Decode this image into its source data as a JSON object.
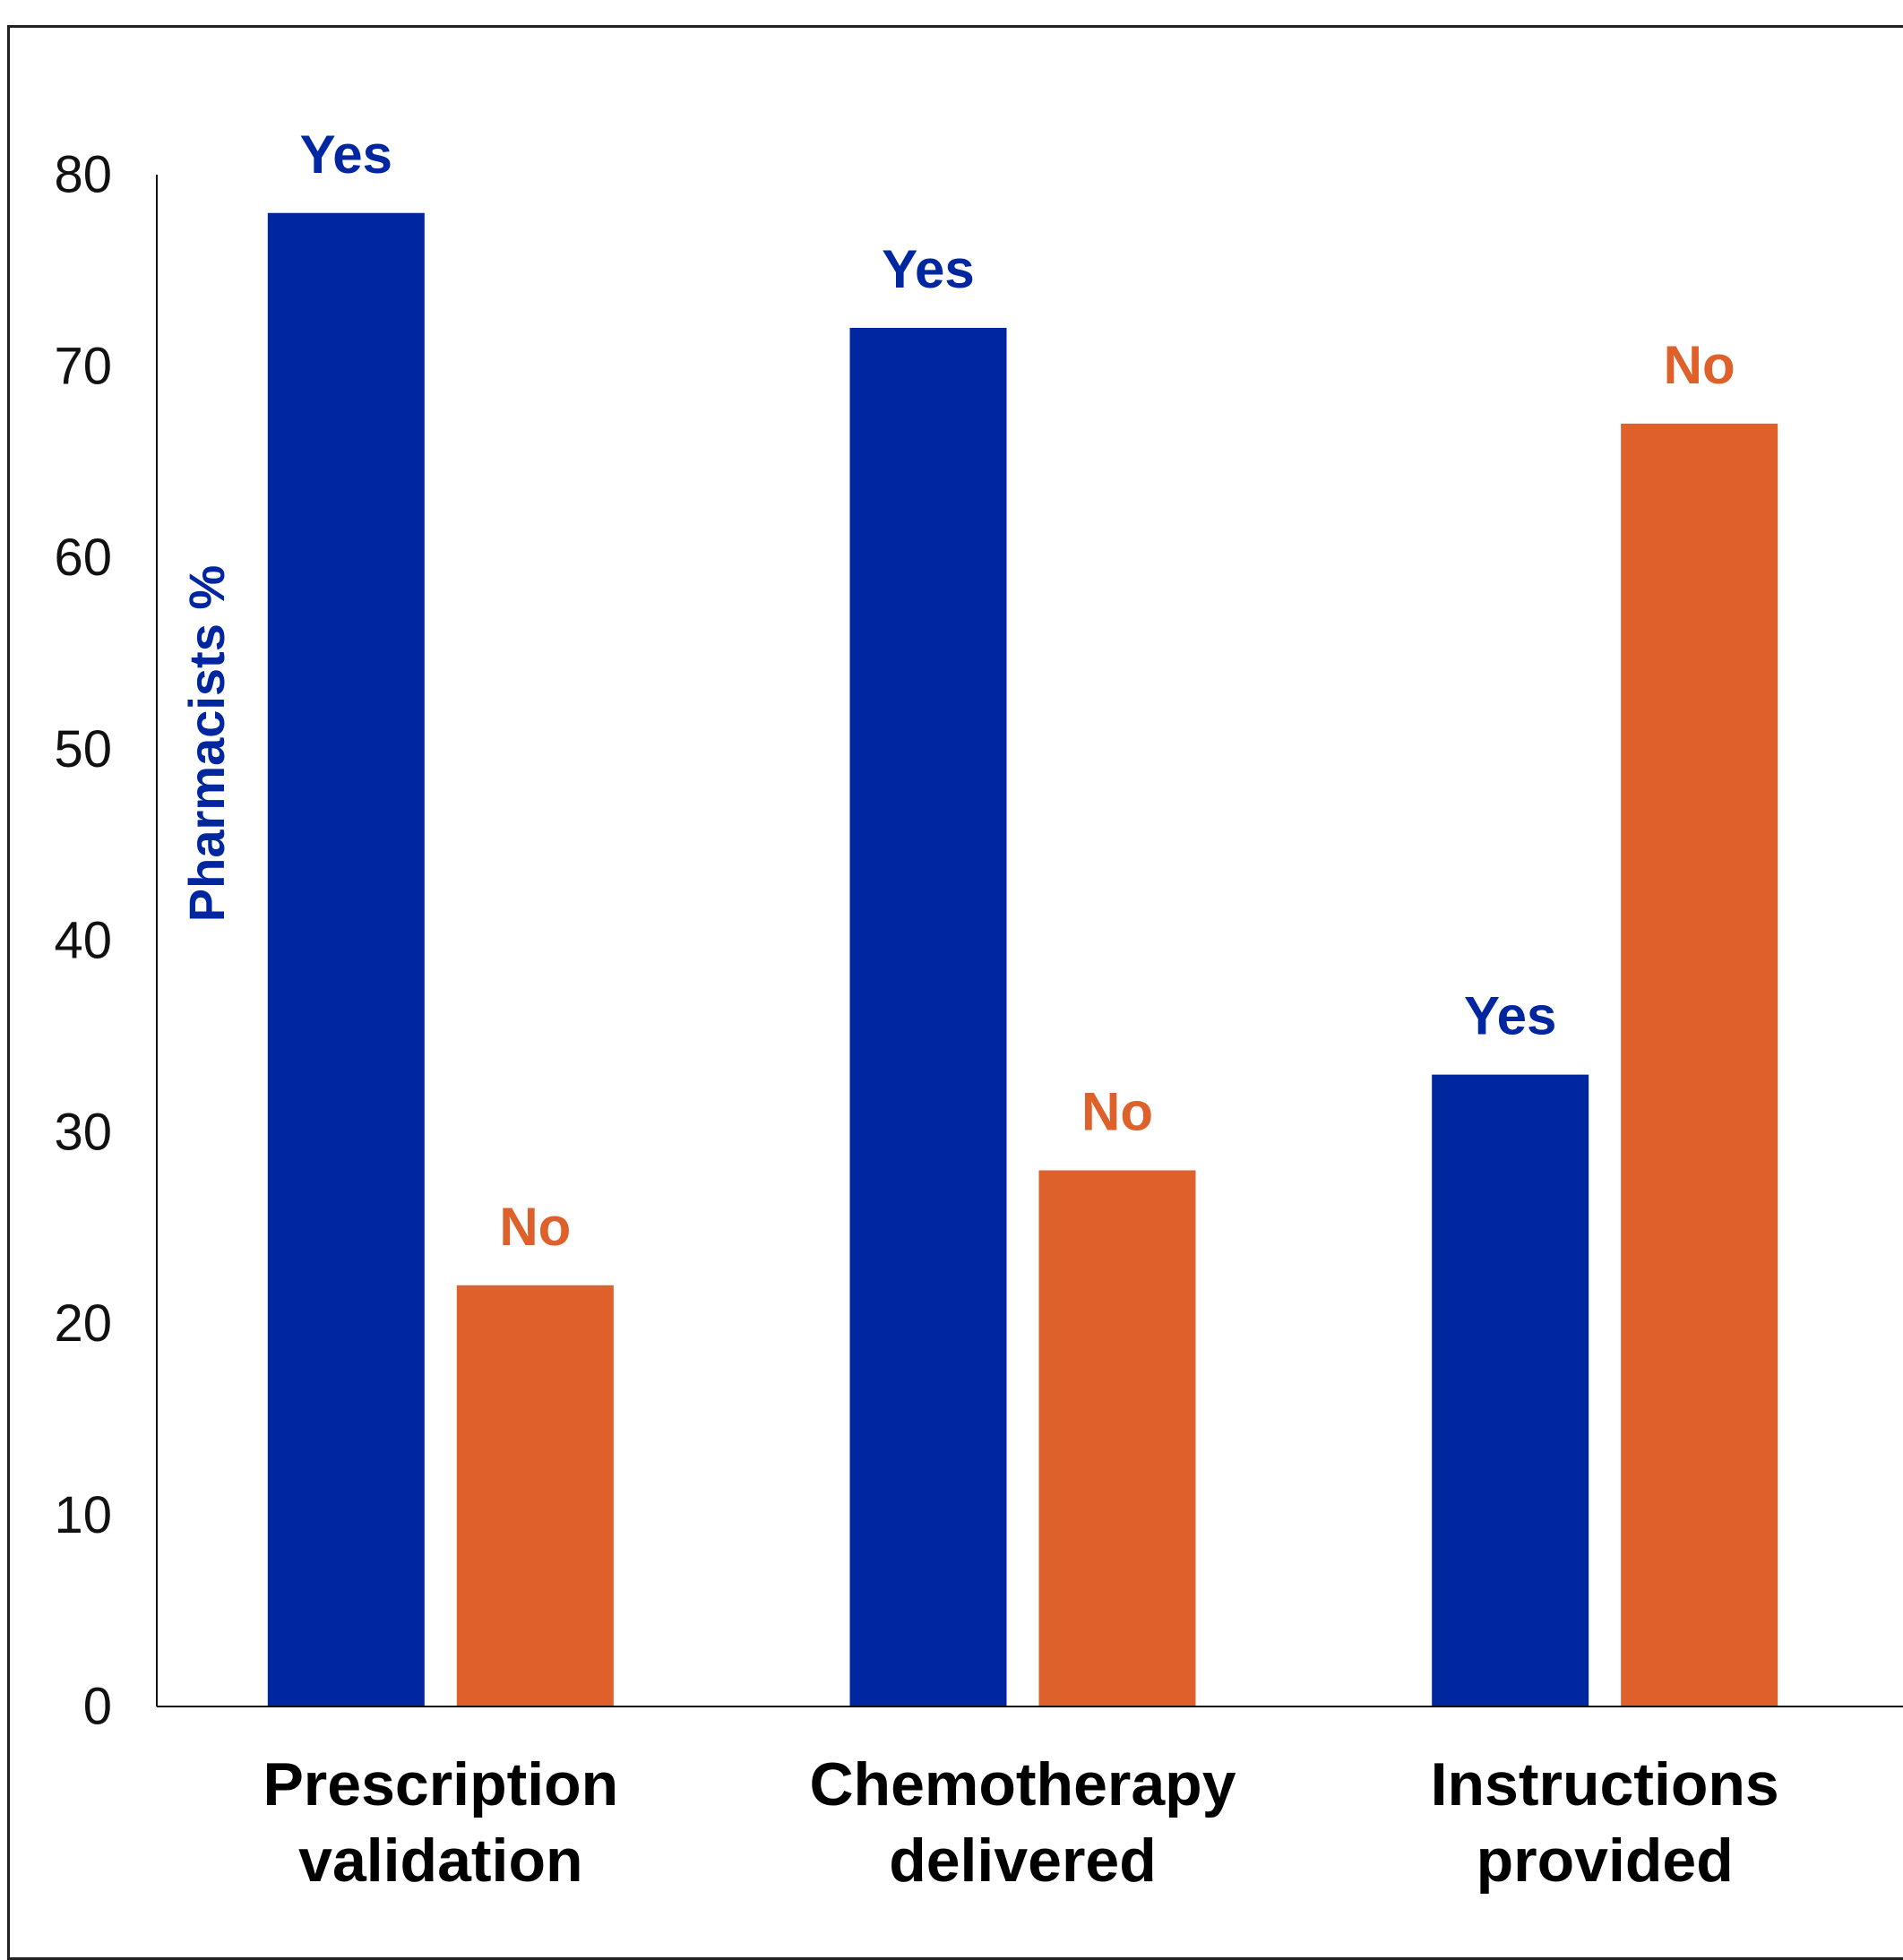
{
  "chart_data": {
    "type": "bar",
    "ylabel": "Pharmacists %",
    "ylim": [
      0,
      80
    ],
    "yticks": [
      0,
      10,
      20,
      30,
      40,
      50,
      60,
      70,
      80
    ],
    "categories": [
      [
        "Prescription",
        "validation"
      ],
      [
        "Chemotherapy",
        "delivered"
      ],
      [
        "Instructions",
        "provided"
      ]
    ],
    "series": [
      {
        "name": "Yes",
        "color": "#0026A0",
        "values": [
          78,
          72,
          33
        ]
      },
      {
        "name": "No",
        "color": "#DE602B",
        "values": [
          22,
          28,
          67
        ]
      }
    ],
    "bar_labels_shown": true,
    "grid": false,
    "legend": "none"
  }
}
